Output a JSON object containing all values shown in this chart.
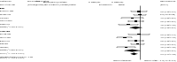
{
  "group1_label": "Sham",
  "group1_studies": [
    {
      "name": "Buchbinder 2009",
      "duration_v": "6 w, 3 months",
      "duration_c": "6 w, 3 months",
      "md": -0.1,
      "lo": -1.2,
      "hi": 1.0,
      "n_v": 68,
      "n_c": 63
    },
    {
      "name": "Kallmes 2009",
      "duration_v": "6 weeks",
      "duration_c": "6 weeks",
      "md": 0.0,
      "lo": -0.8,
      "hi": 0.8,
      "n_v": 71,
      "n_c": 63
    },
    {
      "name": "Clark 2016",
      "duration_v": "6 months",
      "duration_c": "6 months",
      "md": -1.0,
      "lo": -2.5,
      "hi": 0.5,
      "n_v": 46,
      "n_c": 43
    },
    {
      "name": "Firanescu 2018",
      "duration_v": "6 months",
      "duration_c": "6 months",
      "md": -0.5,
      "lo": -1.5,
      "hi": 0.5,
      "n_v": 79,
      "n_c": 77
    },
    {
      "name": "Klazen 2010",
      "duration_v": "1 month",
      "duration_c": "1 month",
      "md": -1.5,
      "lo": -2.8,
      "hi": -0.2,
      "n_v": 101,
      "n_c": 101
    },
    {
      "name": "Subtotal (I^2=75%, p=0.002)",
      "md": -0.55,
      "lo": -1.3,
      "hi": 0.2,
      "is_summary": true
    }
  ],
  "group2_label": "Usual Care",
  "group2_studies": [
    {
      "name": "Rousing 2009",
      "md": -0.1,
      "lo": -1.5,
      "hi": 1.3,
      "n_v": 50,
      "n_c": 50
    },
    {
      "name": "Farrokhi 2011",
      "md": -2.0,
      "lo": -3.0,
      "hi": -1.0,
      "n_v": 33,
      "n_c": 27
    },
    {
      "name": "Blasco 2012",
      "md": -0.5,
      "lo": -1.5,
      "hi": 0.5,
      "n_v": 64,
      "n_c": 61
    },
    {
      "name": "Riew 2014",
      "md": -0.3,
      "lo": -1.2,
      "hi": 0.6,
      "n_v": 44,
      "n_c": 44
    },
    {
      "name": "Yang 2013",
      "md": -1.8,
      "lo": -3.0,
      "hi": -0.6,
      "n_v": 50,
      "n_c": 50
    },
    {
      "name": "Subtotal (I^2=89%, p<0.001)",
      "md": -1.0,
      "lo": -2.0,
      "hi": 0.0,
      "is_summary": true
    }
  ],
  "overall": {
    "md": -0.76,
    "lo": -1.17,
    "hi": -0.38
  },
  "heterogeneity_note": "Heterogeneity between groups: p = 0.523",
  "overall_label": "Overall (I^2 = 77%, p < 0.001)",
  "xlabel_left": "Favours Vertebroplasty",
  "xlabel_right": "Favours Control",
  "overall_note": "MD = -0.76 (-1.17 to -0.38)",
  "xlim_plot": [
    -4.0,
    2.5
  ],
  "bg_color": "#ffffff"
}
